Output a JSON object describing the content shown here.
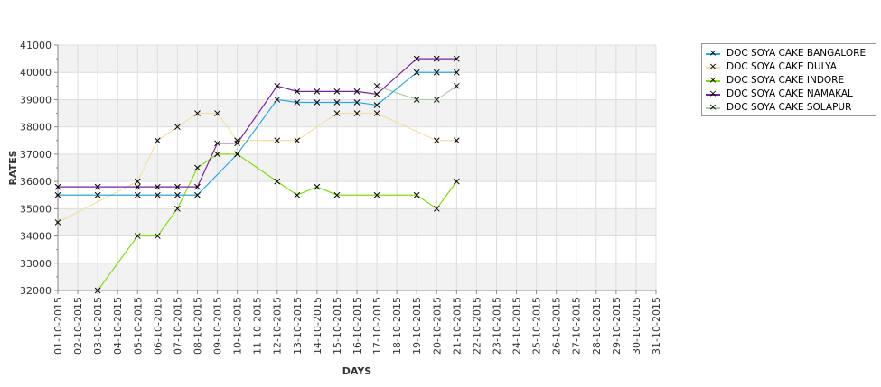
{
  "chart_data": {
    "type": "line",
    "xlabel": "DAYS",
    "ylabel": "RATES",
    "ylim": [
      32000,
      41000
    ],
    "yticks": [
      "32000",
      "33000",
      "34000",
      "35000",
      "36000",
      "37000",
      "38000",
      "39000",
      "40000",
      "41000"
    ],
    "categories": [
      "01-10-2015",
      "02-10-2015",
      "03-10-2015",
      "04-10-2015",
      "05-10-2015",
      "06-10-2015",
      "07-10-2015",
      "08-10-2015",
      "09-10-2015",
      "10-10-2015",
      "11-10-2015",
      "12-10-2015",
      "13-10-2015",
      "14-10-2015",
      "15-10-2015",
      "16-10-2015",
      "17-10-2015",
      "18-10-2015",
      "19-10-2015",
      "20-10-2015",
      "21-10-2015",
      "22-10-2015",
      "23-10-2015",
      "24-10-2015",
      "25-10-2015",
      "26-10-2015",
      "27-10-2015",
      "28-10-2015",
      "29-10-2015",
      "30-10-2015",
      "31-10-2015"
    ],
    "series": [
      {
        "name": "DOC SOYA CAKE BANGALORE",
        "color": "#29abe2",
        "points": [
          [
            1,
            35500
          ],
          [
            3,
            35500
          ],
          [
            5,
            35500
          ],
          [
            6,
            35500
          ],
          [
            7,
            35500
          ],
          [
            8,
            35500
          ],
          [
            10,
            37000
          ],
          [
            12,
            39000
          ],
          [
            13,
            38900
          ],
          [
            14,
            38900
          ],
          [
            15,
            38900
          ],
          [
            16,
            38900
          ],
          [
            17,
            38800
          ],
          [
            19,
            40000
          ],
          [
            20,
            40000
          ],
          [
            21,
            40000
          ]
        ]
      },
      {
        "name": "DOC SOYA CAKE DULYA",
        "color": "#f5dfa0",
        "points": [
          [
            1,
            34500
          ],
          [
            5,
            36000
          ],
          [
            6,
            37500
          ],
          [
            7,
            38000
          ],
          [
            8,
            38500
          ],
          [
            9,
            38500
          ],
          [
            10,
            37500
          ],
          [
            12,
            37500
          ],
          [
            13,
            37500
          ],
          [
            15,
            38500
          ],
          [
            16,
            38500
          ],
          [
            17,
            38500
          ],
          [
            20,
            37500
          ],
          [
            21,
            37500
          ]
        ]
      },
      {
        "name": "DOC SOYA CAKE INDORE",
        "color": "#80e000",
        "points": [
          [
            3,
            32000
          ],
          [
            5,
            34000
          ],
          [
            6,
            34000
          ],
          [
            7,
            35000
          ],
          [
            8,
            36500
          ],
          [
            9,
            37000
          ],
          [
            10,
            37000
          ],
          [
            12,
            36000
          ],
          [
            13,
            35500
          ],
          [
            14,
            35800
          ],
          [
            15,
            35500
          ],
          [
            17,
            35500
          ],
          [
            19,
            35500
          ],
          [
            20,
            35000
          ],
          [
            21,
            36000
          ]
        ]
      },
      {
        "name": "DOC SOYA CAKE NAMAKAL",
        "color": "#7b1fa2",
        "points": [
          [
            1,
            35800
          ],
          [
            3,
            35800
          ],
          [
            5,
            35800
          ],
          [
            6,
            35800
          ],
          [
            7,
            35800
          ],
          [
            8,
            35800
          ],
          [
            9,
            37400
          ],
          [
            10,
            37400
          ],
          [
            12,
            39500
          ],
          [
            13,
            39300
          ],
          [
            14,
            39300
          ],
          [
            15,
            39300
          ],
          [
            16,
            39300
          ],
          [
            17,
            39200
          ],
          [
            19,
            40500
          ],
          [
            20,
            40500
          ],
          [
            21,
            40500
          ]
        ]
      },
      {
        "name": "DOC SOYA CAKE SOLAPUR",
        "color": "#a8cfa0",
        "points": [
          [
            17,
            39500
          ],
          [
            19,
            39000
          ],
          [
            20,
            39000
          ],
          [
            21,
            39500
          ]
        ]
      }
    ],
    "legend": "top-right",
    "grid": true
  }
}
